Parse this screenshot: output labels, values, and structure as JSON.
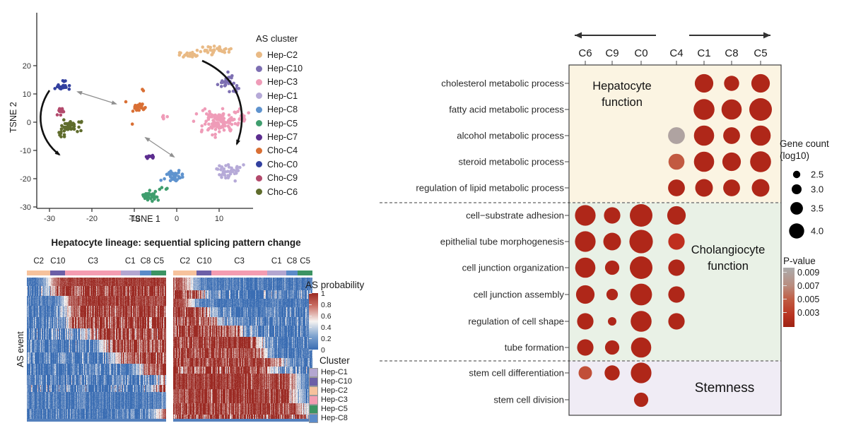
{
  "chart_data": [
    {
      "id": "tsne",
      "type": "scatter",
      "xlabel": "TSNE 1",
      "ylabel": "TSNE 2",
      "legend_title": "AS cluster",
      "xticks": [
        -30,
        -20,
        -10,
        0,
        10
      ],
      "yticks": [
        20,
        10,
        0,
        -10,
        -20,
        -30
      ],
      "xlim": [
        -33,
        18
      ],
      "ylim": [
        -31,
        29
      ],
      "clusters": [
        {
          "name": "Hep-C2",
          "color": "#e9ba85",
          "blobs": [
            {
              "cx": 2.5,
              "cy": 24.2,
              "sx": 2.3,
              "sy": 0.9,
              "n": 20
            },
            {
              "cx": 9,
              "cy": 25.4,
              "sx": 2.6,
              "sy": 1.1,
              "n": 32
            }
          ]
        },
        {
          "name": "Hep-C10",
          "color": "#7d6fb2",
          "blobs": [
            {
              "cx": 11.5,
              "cy": 14.5,
              "sx": 1.5,
              "sy": 1.9,
              "n": 26
            },
            {
              "cx": 13.6,
              "cy": 11.4,
              "sx": 0.9,
              "sy": 0.9,
              "n": 7
            }
          ]
        },
        {
          "name": "Hep-C3",
          "color": "#ef9cb8",
          "blobs": [
            {
              "cx": 10,
              "cy": 0,
              "sx": 3.2,
              "sy": 3.5,
              "n": 100
            },
            {
              "cx": 15.4,
              "cy": 1.5,
              "sx": 1.2,
              "sy": 2.2,
              "n": 12
            },
            {
              "cx": -2.5,
              "cy": 1.6,
              "sx": 1.1,
              "sy": 0.45,
              "n": 6
            }
          ],
          "note": "main hepatocyte cluster"
        },
        {
          "name": "Hep-C1",
          "color": "#b6aad8",
          "blobs": [
            {
              "cx": 12,
              "cy": -17,
              "sx": 2.1,
              "sy": 1.9,
              "n": 42
            }
          ]
        },
        {
          "name": "Hep-C8",
          "color": "#5f93ce",
          "blobs": [
            {
              "cx": -0.8,
              "cy": -19,
              "sx": 1.6,
              "sy": 1.6,
              "n": 36
            }
          ]
        },
        {
          "name": "Hep-C5",
          "color": "#3f9e6e",
          "blobs": [
            {
              "cx": -6.3,
              "cy": -26,
              "sx": 1.6,
              "sy": 1.1,
              "n": 40
            },
            {
              "cx": -3.2,
              "cy": -23.3,
              "sx": 0.6,
              "sy": 0.5,
              "n": 4
            }
          ]
        },
        {
          "name": "Hep-C7",
          "color": "#5c2d8f",
          "blobs": [
            {
              "cx": -6.4,
              "cy": -12.2,
              "sx": 0.75,
              "sy": 0.5,
              "n": 13
            }
          ]
        },
        {
          "name": "Cho-C4",
          "color": "#d96f34",
          "blobs": [
            {
              "cx": -9,
              "cy": 5,
              "sx": 1.2,
              "sy": 1.1,
              "n": 26
            },
            {
              "cx": -7.8,
              "cy": 11.3,
              "sx": 0.4,
              "sy": 0.3,
              "n": 2
            },
            {
              "cx": -12,
              "cy": 7.2,
              "sx": 0.15,
              "sy": 0.15,
              "n": 1
            },
            {
              "cx": -10.3,
              "cy": -0.8,
              "sx": 0.15,
              "sy": 0.15,
              "n": 1
            }
          ]
        },
        {
          "name": "Cho-C0",
          "color": "#32409f",
          "blobs": [
            {
              "cx": -27,
              "cy": 12.5,
              "sx": 1.15,
              "sy": 0.55,
              "n": 34
            },
            {
              "cx": -26.6,
              "cy": 14.6,
              "sx": 0.5,
              "sy": 0.3,
              "n": 3
            }
          ]
        },
        {
          "name": "Cho-C9",
          "color": "#b34a6c",
          "blobs": [
            {
              "cx": -27.4,
              "cy": 4,
              "sx": 0.55,
              "sy": 1.1,
              "n": 16
            }
          ]
        },
        {
          "name": "Cho-C6",
          "color": "#5f6c2c",
          "blobs": [
            {
              "cx": -25.5,
              "cy": -1.8,
              "sx": 2.1,
              "sy": 1.6,
              "n": 38
            },
            {
              "cx": -27.2,
              "cy": -5,
              "sx": 0.7,
              "sy": 1.0,
              "n": 5
            },
            {
              "cx": -22.5,
              "cy": 0.3,
              "sx": 0.8,
              "sy": 0.6,
              "n": 4
            }
          ]
        }
      ]
    },
    {
      "id": "heatmap",
      "type": "heatmap",
      "title": "Hepatocyte lineage: sequential splicing pattern change",
      "ylabel": "AS event",
      "col_labels": [
        "C2",
        "C10",
        "C3",
        "C1",
        "C8",
        "C5"
      ],
      "col_fracs": [
        0.17,
        0.105,
        0.4,
        0.135,
        0.085,
        0.105
      ],
      "col_colors": [
        "#f6c29c",
        "#6c5fa7",
        "#f49cb1",
        "#b3a6d0",
        "#5b8bc9",
        "#3c9463"
      ],
      "value_colors": {
        "high": "#9b2a23",
        "mid": "#f6f3f1",
        "low": "#3a6db3"
      },
      "colorbar": {
        "title": "AS probability",
        "ticks": [
          1,
          0.8,
          0.6,
          0.4,
          0.2,
          0
        ]
      },
      "cluster_legend": {
        "title": "Cluster",
        "items": [
          {
            "label": "Hep-C1",
            "color": "#b3a6d0"
          },
          {
            "label": "Hep-C10",
            "color": "#6c5fa7"
          },
          {
            "label": "Hep-C2",
            "color": "#f6c29c"
          },
          {
            "label": "Hep-C3",
            "color": "#f49cb1"
          },
          {
            "label": "Hep-C5",
            "color": "#3c9463"
          },
          {
            "label": "Hep-C8",
            "color": "#5b8bc9"
          }
        ]
      },
      "panels": [
        {
          "red_side": "right",
          "groups": [
            [
              0.06,
              0.16,
              0.1
            ],
            [
              0.07,
              0.17,
              0.45
            ],
            [
              0.07,
              0.27,
              0.18
            ],
            [
              0.08,
              0.28,
              0.4
            ],
            [
              0.08,
              0.3,
              0.5
            ],
            [
              0.08,
              0.42,
              0.55
            ],
            [
              0.09,
              0.55,
              0.5
            ],
            [
              0.08,
              0.63,
              0.45
            ],
            [
              0.08,
              0.82,
              0.35
            ],
            [
              0.07,
              0.97,
              0.55
            ],
            [
              0.05,
              0.92,
              0.65
            ],
            [
              0.12,
              1.05,
              0.2
            ],
            [
              0.07,
              0.93,
              0.3
            ]
          ]
        },
        {
          "red_side": "left",
          "groups": [
            [
              0.09,
              0.13,
              0.2
            ],
            [
              0.06,
              0.22,
              0.5
            ],
            [
              0.06,
              0.13,
              0.15
            ],
            [
              0.07,
              0.26,
              0.4
            ],
            [
              0.06,
              0.32,
              0.5
            ],
            [
              0.08,
              0.48,
              0.5
            ],
            [
              0.08,
              0.63,
              0.35
            ],
            [
              0.07,
              0.65,
              0.3
            ],
            [
              0.06,
              0.78,
              0.35
            ],
            [
              0.05,
              0.7,
              0.5
            ],
            [
              0.11,
              0.88,
              0.25
            ],
            [
              0.1,
              0.88,
              0.45
            ],
            [
              0.08,
              0.94,
              0.35
            ],
            [
              0.03,
              0.99,
              0.6
            ]
          ]
        }
      ]
    },
    {
      "id": "dotplot",
      "type": "scatter",
      "columns": [
        "C6",
        "C9",
        "C0",
        "C4",
        "C1",
        "C8",
        "C5"
      ],
      "size_legend": {
        "title_line1": "Gene count",
        "title_line2": "(log10)",
        "values": [
          2.5,
          3.0,
          3.5,
          4.0
        ]
      },
      "p_legend": {
        "title": "P-value",
        "ticks": [
          0.009,
          0.007,
          0.005,
          0.003
        ]
      },
      "sections": [
        {
          "label": "Hepatocyte function",
          "label_lines": [
            "Hepatocyte",
            "function"
          ],
          "bg": "#fbf4e2",
          "rows": [
            {
              "label": "cholesterol metabolic process",
              "dots": [
                {
                  "col": "C1",
                  "g": 3.8,
                  "p": 0.002
                },
                {
                  "col": "C8",
                  "g": 3.4,
                  "p": 0.002
                },
                {
                  "col": "C5",
                  "g": 3.8,
                  "p": 0.002
                }
              ]
            },
            {
              "label": "fatty acid metabolic process",
              "dots": [
                {
                  "col": "C1",
                  "g": 4.1,
                  "p": 0.002
                },
                {
                  "col": "C8",
                  "g": 4.0,
                  "p": 0.002
                },
                {
                  "col": "C5",
                  "g": 4.3,
                  "p": 0.002
                }
              ]
            },
            {
              "label": "alcohol metabolic process",
              "dots": [
                {
                  "col": "C4",
                  "g": 3.6,
                  "p": 0.009
                },
                {
                  "col": "C1",
                  "g": 4.0,
                  "p": 0.002
                },
                {
                  "col": "C8",
                  "g": 3.6,
                  "p": 0.002
                },
                {
                  "col": "C5",
                  "g": 4.0,
                  "p": 0.002
                }
              ]
            },
            {
              "label": "steroid metabolic process",
              "dots": [
                {
                  "col": "C4",
                  "g": 3.5,
                  "p": 0.005
                },
                {
                  "col": "C1",
                  "g": 4.0,
                  "p": 0.002
                },
                {
                  "col": "C8",
                  "g": 3.8,
                  "p": 0.002
                },
                {
                  "col": "C5",
                  "g": 4.1,
                  "p": 0.002
                }
              ]
            },
            {
              "label": "regulation of lipid metabolic process",
              "dots": [
                {
                  "col": "C4",
                  "g": 3.6,
                  "p": 0.002
                },
                {
                  "col": "C1",
                  "g": 3.7,
                  "p": 0.002
                },
                {
                  "col": "C8",
                  "g": 3.6,
                  "p": 0.002
                },
                {
                  "col": "C5",
                  "g": 3.7,
                  "p": 0.002
                }
              ]
            }
          ]
        },
        {
          "label": "Cholangiocyte function",
          "label_lines": [
            "Cholangiocyte",
            "function"
          ],
          "bg": "#e9f1e6",
          "rows": [
            {
              "label": "cell−substrate adhesion",
              "dots": [
                {
                  "col": "C6",
                  "g": 4.05,
                  "p": 0.002
                },
                {
                  "col": "C9",
                  "g": 3.55,
                  "p": 0.002
                },
                {
                  "col": "C0",
                  "g": 4.3,
                  "p": 0.002
                },
                {
                  "col": "C4",
                  "g": 3.8,
                  "p": 0.002
                }
              ]
            },
            {
              "label": "epithelial tube morphogenesis",
              "dots": [
                {
                  "col": "C6",
                  "g": 4.05,
                  "p": 0.002
                },
                {
                  "col": "C9",
                  "g": 3.7,
                  "p": 0.002
                },
                {
                  "col": "C0",
                  "g": 4.4,
                  "p": 0.002
                },
                {
                  "col": "C4",
                  "g": 3.55,
                  "p": 0.003
                }
              ]
            },
            {
              "label": "cell junction organization",
              "dots": [
                {
                  "col": "C6",
                  "g": 4.0,
                  "p": 0.002
                },
                {
                  "col": "C9",
                  "g": 3.3,
                  "p": 0.002
                },
                {
                  "col": "C0",
                  "g": 4.3,
                  "p": 0.002
                },
                {
                  "col": "C4",
                  "g": 3.55,
                  "p": 0.002
                }
              ]
            },
            {
              "label": "cell junction assembly",
              "dots": [
                {
                  "col": "C6",
                  "g": 3.8,
                  "p": 0.002
                },
                {
                  "col": "C9",
                  "g": 2.95,
                  "p": 0.002
                },
                {
                  "col": "C0",
                  "g": 4.2,
                  "p": 0.002
                },
                {
                  "col": "C4",
                  "g": 3.55,
                  "p": 0.002
                }
              ]
            },
            {
              "label": "regulation of cell shape",
              "dots": [
                {
                  "col": "C6",
                  "g": 3.55,
                  "p": 0.002
                },
                {
                  "col": "C9",
                  "g": 2.6,
                  "p": 0.002
                },
                {
                  "col": "C0",
                  "g": 4.1,
                  "p": 0.002
                },
                {
                  "col": "C4",
                  "g": 3.55,
                  "p": 0.002
                }
              ]
            },
            {
              "label": "tube formation",
              "dots": [
                {
                  "col": "C6",
                  "g": 3.55,
                  "p": 0.002
                },
                {
                  "col": "C9",
                  "g": 3.3,
                  "p": 0.002
                },
                {
                  "col": "C0",
                  "g": 4.0,
                  "p": 0.002
                }
              ]
            }
          ]
        },
        {
          "label": "Stemness",
          "label_lines": [
            "Stemness"
          ],
          "bg": "#f0ecf5",
          "rows": [
            {
              "label": "stem cell differentiation",
              "dots": [
                {
                  "col": "C6",
                  "g": 3.2,
                  "p": 0.0045
                },
                {
                  "col": "C9",
                  "g": 3.4,
                  "p": 0.002
                },
                {
                  "col": "C0",
                  "g": 4.05,
                  "p": 0.002
                }
              ]
            },
            {
              "label": "stem cell division",
              "dots": [
                {
                  "col": "C0",
                  "g": 3.3,
                  "p": 0.002
                }
              ]
            }
          ]
        }
      ]
    }
  ]
}
